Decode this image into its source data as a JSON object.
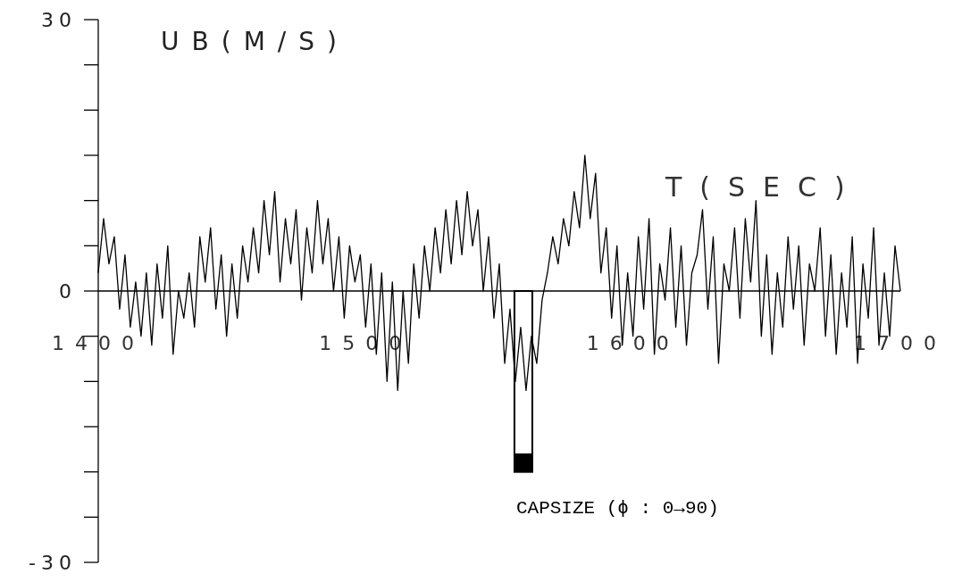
{
  "chart_data": {
    "type": "line",
    "ylabel": "UB(M/S)",
    "xlabel": "T(SEC)",
    "xlim": [
      1400,
      1700
    ],
    "xticks": [
      1400,
      1500,
      1600,
      1700
    ],
    "ylim": [
      -30,
      30
    ],
    "yticks": [
      {
        "value": -30,
        "label": "-30"
      },
      {
        "value": -25,
        "label": null
      },
      {
        "value": -20,
        "label": null
      },
      {
        "value": -15,
        "label": null
      },
      {
        "value": -10,
        "label": null
      },
      {
        "value": -5,
        "label": null
      },
      0,
      {
        "value": 5,
        "label": null
      },
      {
        "value": 10,
        "label": null
      },
      {
        "value": 15,
        "label": null
      },
      {
        "value": 20,
        "label": null
      },
      {
        "value": 25,
        "label": null
      },
      30
    ],
    "grid": false,
    "series": [
      {
        "type": "bar",
        "x": [
          1559
        ],
        "values": [
          -20
        ],
        "color": "#000000"
      },
      {
        "color": "#000000",
        "x": [
          1400,
          1402,
          1404,
          1406,
          1408,
          1410,
          1412,
          1414,
          1416,
          1418,
          1420,
          1422,
          1424,
          1426,
          1428,
          1430,
          1432,
          1434,
          1436,
          1438,
          1440,
          1442,
          1444,
          1446,
          1448,
          1450,
          1452,
          1454,
          1456,
          1458,
          1460,
          1462,
          1464,
          1466,
          1468,
          1470,
          1472,
          1474,
          1476,
          1478,
          1480,
          1482,
          1484,
          1486,
          1488,
          1490,
          1492,
          1494,
          1496,
          1498,
          1500,
          1502,
          1504,
          1506,
          1508,
          1510,
          1512,
          1514,
          1516,
          1518,
          1520,
          1522,
          1524,
          1526,
          1528,
          1530,
          1532,
          1534,
          1536,
          1538,
          1540,
          1542,
          1544,
          1546,
          1548,
          1550,
          1552,
          1554,
          1556,
          1558,
          1560,
          1562,
          1564,
          1566,
          1568,
          1570,
          1572,
          1574,
          1576,
          1578,
          1580,
          1582,
          1584,
          1586,
          1588,
          1590,
          1592,
          1594,
          1596,
          1598,
          1600,
          1602,
          1604,
          1606,
          1608,
          1610,
          1612,
          1614,
          1616,
          1618,
          1620,
          1622,
          1624,
          1626,
          1628,
          1630,
          1632,
          1634,
          1636,
          1638,
          1640,
          1642,
          1644,
          1646,
          1648,
          1650,
          1652,
          1654,
          1656,
          1658,
          1660,
          1662,
          1664,
          1666,
          1668,
          1670,
          1672,
          1674,
          1676,
          1678,
          1680,
          1682,
          1684,
          1686,
          1688,
          1690,
          1692,
          1694,
          1696,
          1698,
          1700
        ],
        "values": [
          2,
          8,
          3,
          6,
          -2,
          4,
          -4,
          1,
          -5,
          2,
          -6,
          3,
          -3,
          5,
          -7,
          0,
          -3,
          2,
          -4,
          6,
          1,
          7,
          -2,
          4,
          -5,
          3,
          -3,
          5,
          1,
          7,
          2,
          10,
          4,
          11,
          1,
          8,
          3,
          9,
          -1,
          7,
          2,
          10,
          3,
          8,
          0,
          6,
          -3,
          5,
          1,
          4,
          -4,
          3,
          -7,
          2,
          -10,
          1,
          -11,
          0,
          -8,
          3,
          -3,
          5,
          0,
          7,
          2,
          9,
          3,
          10,
          4,
          11,
          5,
          9,
          0,
          6,
          -3,
          3,
          -8,
          -2,
          -10,
          -4,
          -11,
          -5,
          -8,
          -1,
          2,
          6,
          3,
          8,
          5,
          11,
          7,
          15,
          8,
          13,
          2,
          7,
          -3,
          5,
          -6,
          2,
          -5,
          6,
          -2,
          8,
          -7,
          3,
          -1,
          7,
          -4,
          5,
          -6,
          2,
          4,
          9,
          -2,
          6,
          -8,
          3,
          0,
          7,
          -3,
          8,
          1,
          10,
          -5,
          4,
          -7,
          2,
          -4,
          6,
          -2,
          5,
          -6,
          3,
          0,
          7,
          -5,
          4,
          -7,
          2,
          -4,
          6,
          -8,
          3,
          -3,
          7,
          -6,
          2,
          -5,
          5,
          0
        ]
      }
    ],
    "annotations": [
      {
        "text": "CAPSIZE (ϕ : 0→90)",
        "x": 1559,
        "y": -20
      }
    ]
  }
}
